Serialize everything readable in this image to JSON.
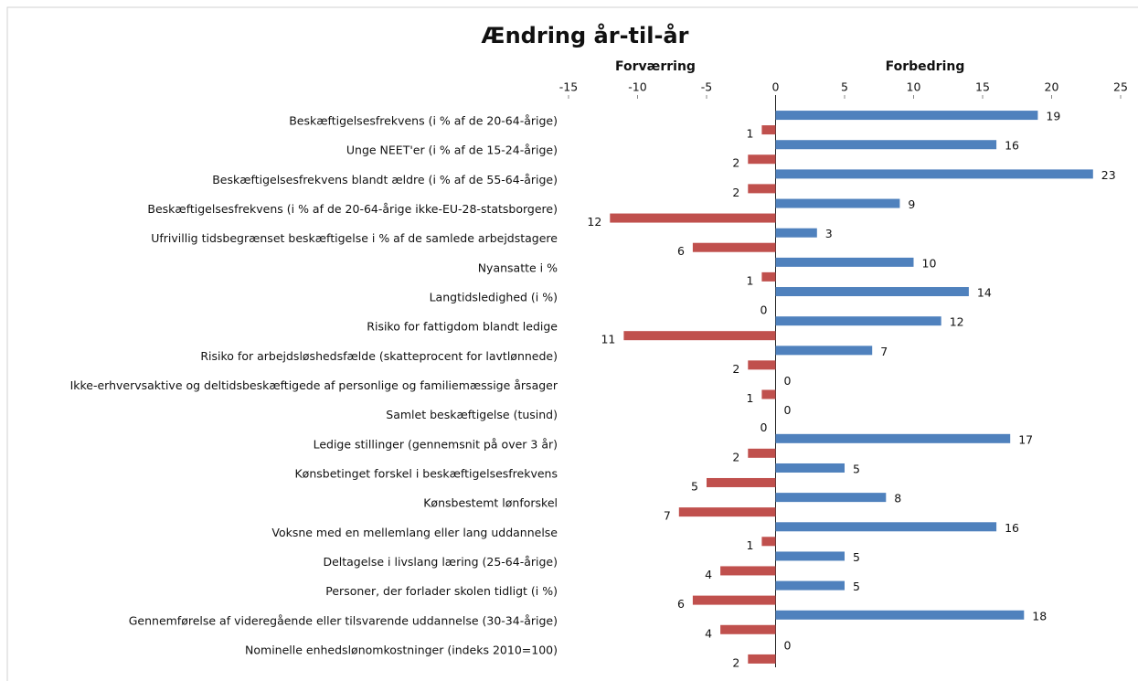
{
  "chart_data": {
    "type": "bar",
    "orientation": "horizontal",
    "title": "Ændring år-til-år",
    "annotations": [
      "Forværring",
      "Forbedring"
    ],
    "categories": [
      "Beskæftigelsesfrekvens (i % af de 20-64-årige)",
      "Unge NEET'er (i % af de 15-24-årige)",
      "Beskæftigelsesfrekvens blandt ældre (i % af de 55-64-årige)",
      "Beskæftigelsesfrekvens (i % af de 20-64-årige ikke-EU-28-statsborgere)",
      "Ufrivillig tidsbegrænset beskæftigelse i % af de samlede arbejdstagere",
      "Nyansatte i %",
      "Langtidsledighed (i %)",
      "Risiko for fattigdom blandt ledige",
      "Risiko for arbejdsløshedsfælde (skatteprocent for lavtlønnede)",
      "Ikke-erhvervsaktive og deltidsbeskæftigede af personlige og familiemæssige årsager",
      "Samlet beskæftigelse (tusind)",
      "Ledige stillinger (gennemsnit på over 3 år)",
      "Kønsbetinget forskel i beskæftigelsesfrekvens",
      "Kønsbestemt lønforskel",
      "Voksne med en mellemlang eller lang uddannelse",
      "Deltagelse i livslang læring (25-64-årige)",
      "Personer, der forlader skolen tidligt (i %)",
      "Gennemførelse af videregående eller tilsvarende uddannelse (30-34-årige)",
      "Nominelle enhedslønomkostninger (indeks 2010=100)"
    ],
    "series": [
      {
        "color": "#4f81bd",
        "values": [
          19,
          16,
          23,
          9,
          3,
          10,
          14,
          12,
          7,
          0,
          0,
          17,
          5,
          8,
          16,
          5,
          5,
          18,
          0
        ]
      },
      {
        "color": "#c0504d",
        "values": [
          -1,
          -2,
          -2,
          -12,
          -6,
          -1,
          0,
          -11,
          -2,
          -1,
          0,
          -2,
          -5,
          -7,
          -1,
          -4,
          -6,
          -4,
          -2
        ],
        "value_labels": [
          "1",
          "2",
          "2",
          "12",
          "6",
          "1",
          "0",
          "11",
          "2",
          "1",
          "0",
          "2",
          "5",
          "7",
          "1",
          "4",
          "6",
          "4",
          "2"
        ]
      }
    ],
    "xlim": [
      -15,
      25
    ],
    "xticks": [
      -15,
      -10,
      -5,
      0,
      5,
      10,
      15,
      20,
      25
    ]
  }
}
